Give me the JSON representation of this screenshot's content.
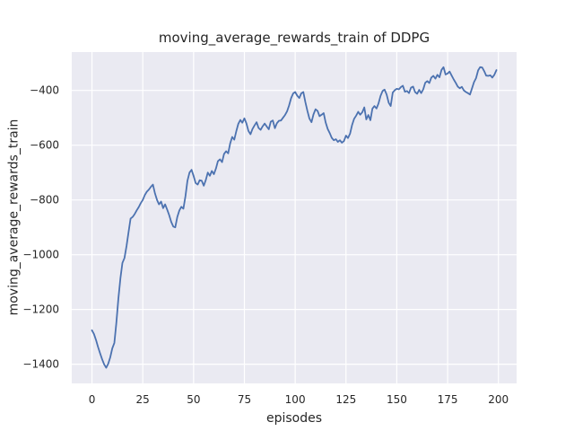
{
  "chart_data": {
    "type": "line",
    "title": "moving_average_rewards_train of DDPG",
    "xlabel": "episodes",
    "ylabel": "moving_average_rewards_train",
    "x_ticks": [
      0,
      25,
      50,
      75,
      100,
      125,
      150,
      175,
      200
    ],
    "y_ticks": [
      -400,
      -600,
      -800,
      -1000,
      -1200,
      -1400
    ],
    "xlim": [
      -9.95,
      208.95
    ],
    "ylim": [
      -1470,
      -260
    ],
    "grid": true,
    "legend_position": "none",
    "colors": {
      "figure_background": "#ffffff",
      "plot_background": "#eaeaf2",
      "grid": "#ffffff",
      "line": "#4c72b0",
      "text": "#262626"
    },
    "series": [
      {
        "name": "moving_average_rewards_train",
        "color": "#4c72b0",
        "x_start": 0,
        "x_step": 1,
        "values": [
          -1276,
          -1290,
          -1312,
          -1337,
          -1360,
          -1382,
          -1400,
          -1413,
          -1398,
          -1375,
          -1342,
          -1322,
          -1250,
          -1160,
          -1085,
          -1030,
          -1012,
          -968,
          -918,
          -868,
          -862,
          -852,
          -838,
          -826,
          -812,
          -800,
          -782,
          -770,
          -762,
          -752,
          -744,
          -776,
          -800,
          -816,
          -806,
          -830,
          -816,
          -835,
          -855,
          -880,
          -897,
          -900,
          -862,
          -838,
          -825,
          -832,
          -786,
          -730,
          -700,
          -690,
          -712,
          -738,
          -744,
          -728,
          -730,
          -748,
          -728,
          -700,
          -712,
          -694,
          -706,
          -685,
          -658,
          -652,
          -662,
          -632,
          -622,
          -630,
          -594,
          -570,
          -580,
          -550,
          -522,
          -508,
          -518,
          -502,
          -521,
          -548,
          -560,
          -541,
          -528,
          -516,
          -537,
          -544,
          -531,
          -521,
          -532,
          -542,
          -514,
          -510,
          -538,
          -520,
          -511,
          -510,
          -500,
          -490,
          -476,
          -455,
          -428,
          -411,
          -406,
          -419,
          -428,
          -411,
          -406,
          -443,
          -474,
          -503,
          -516,
          -488,
          -469,
          -475,
          -494,
          -489,
          -483,
          -517,
          -541,
          -556,
          -573,
          -582,
          -578,
          -588,
          -582,
          -591,
          -585,
          -565,
          -574,
          -558,
          -526,
          -504,
          -492,
          -478,
          -489,
          -480,
          -462,
          -506,
          -490,
          -509,
          -467,
          -457,
          -466,
          -448,
          -420,
          -402,
          -397,
          -415,
          -445,
          -457,
          -408,
          -399,
          -394,
          -396,
          -388,
          -383,
          -405,
          -402,
          -410,
          -390,
          -386,
          -406,
          -412,
          -398,
          -410,
          -396,
          -372,
          -366,
          -373,
          -353,
          -347,
          -357,
          -343,
          -352,
          -325,
          -315,
          -342,
          -338,
          -331,
          -346,
          -360,
          -372,
          -386,
          -392,
          -387,
          -400,
          -406,
          -410,
          -415,
          -392,
          -370,
          -355,
          -327,
          -315,
          -316,
          -330,
          -346,
          -347,
          -345,
          -353,
          -343,
          -326
        ]
      }
    ]
  }
}
